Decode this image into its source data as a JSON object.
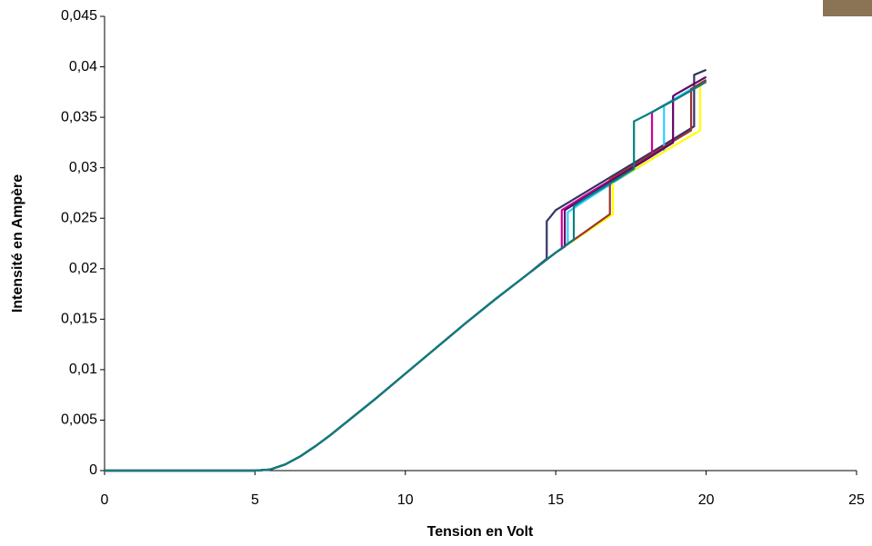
{
  "chart_data": {
    "type": "line",
    "xlabel": "Tension en Volt",
    "ylabel": "Intensité en Ampère",
    "xlim": [
      0,
      25
    ],
    "xticks": [
      0,
      5,
      10,
      15,
      20,
      25
    ],
    "ylim": [
      0,
      0.045
    ],
    "yticks": [
      0,
      {
        "value": 0.005,
        "label": "0,005"
      },
      {
        "value": 0.01,
        "label": "0,01"
      },
      {
        "value": 0.015,
        "label": "0,015"
      },
      {
        "value": 0.02,
        "label": "0,02"
      },
      {
        "value": 0.025,
        "label": "0,025"
      },
      {
        "value": 0.03,
        "label": "0,03"
      },
      {
        "value": 0.035,
        "label": "0,035"
      },
      {
        "value": 0.04,
        "label": "0,04"
      },
      {
        "value": 0.045,
        "label": "0,045"
      }
    ],
    "grid": false,
    "series": [
      {
        "color": "#333366",
        "x": [
          0,
          5,
          5.5,
          6,
          6.5,
          7,
          7.5,
          8,
          9,
          10,
          11,
          12,
          13,
          14,
          14.7,
          14.7,
          15,
          16,
          17,
          18,
          19,
          19.6,
          19.6,
          20
        ],
        "values": [
          0,
          0,
          0.0001,
          0.0006,
          0.0014,
          0.0024,
          0.0035,
          0.0047,
          0.0071,
          0.0096,
          0.0121,
          0.0146,
          0.017,
          0.0193,
          0.021,
          0.0247,
          0.0258,
          0.0276,
          0.0294,
          0.0312,
          0.033,
          0.0341,
          0.0392,
          0.0397
        ]
      },
      {
        "color": "#cc0099",
        "x": [
          0,
          5,
          5.5,
          6,
          6.5,
          7,
          7.5,
          8,
          9,
          10,
          11,
          12,
          13,
          14,
          15,
          15.2,
          15.2,
          16,
          17,
          18,
          18.2,
          18.2,
          19,
          20
        ],
        "values": [
          0,
          0,
          0.0001,
          0.0006,
          0.0014,
          0.0024,
          0.0035,
          0.0047,
          0.0071,
          0.0096,
          0.0121,
          0.0146,
          0.017,
          0.0193,
          0.0216,
          0.022,
          0.0258,
          0.0273,
          0.0291,
          0.0309,
          0.0313,
          0.0355,
          0.0369,
          0.0386
        ]
      },
      {
        "color": "#33ccff",
        "x": [
          0,
          5,
          5.5,
          6,
          6.5,
          7,
          7.5,
          8,
          9,
          10,
          11,
          12,
          13,
          14,
          15,
          15.4,
          15.4,
          16,
          17,
          18,
          18.6,
          18.6,
          19,
          20
        ],
        "values": [
          0,
          0,
          0.0001,
          0.0006,
          0.0014,
          0.0024,
          0.0035,
          0.0047,
          0.0071,
          0.0096,
          0.0121,
          0.0146,
          0.017,
          0.0193,
          0.0216,
          0.0224,
          0.0256,
          0.0268,
          0.0287,
          0.0305,
          0.0316,
          0.0362,
          0.0369,
          0.0387
        ]
      },
      {
        "color": "#ffff00",
        "x": [
          0,
          5,
          5.5,
          6,
          6.5,
          7,
          7.5,
          8,
          9,
          10,
          11,
          12,
          13,
          14,
          15,
          16,
          16.9,
          16.9,
          17,
          18,
          19,
          19.8,
          19.8,
          20
        ],
        "values": [
          0,
          0,
          0.0001,
          0.0006,
          0.0014,
          0.0024,
          0.0035,
          0.0047,
          0.0071,
          0.0096,
          0.0121,
          0.0146,
          0.017,
          0.0193,
          0.0216,
          0.0236,
          0.0254,
          0.0286,
          0.0288,
          0.0305,
          0.0323,
          0.0337,
          0.0383,
          0.0385
        ]
      },
      {
        "color": "#993333",
        "x": [
          0,
          5,
          5.5,
          6,
          6.5,
          7,
          7.5,
          8,
          9,
          10,
          11,
          12,
          13,
          14,
          15,
          16,
          16.8,
          16.8,
          17,
          18,
          19,
          19.5,
          19.5,
          20
        ],
        "values": [
          0,
          0,
          0.0001,
          0.0006,
          0.0014,
          0.0024,
          0.0035,
          0.0047,
          0.0071,
          0.0096,
          0.0121,
          0.0146,
          0.017,
          0.0193,
          0.0216,
          0.0237,
          0.0254,
          0.0289,
          0.0292,
          0.031,
          0.0328,
          0.0337,
          0.0378,
          0.0387
        ]
      },
      {
        "color": "#660066",
        "x": [
          0,
          5,
          5.5,
          6,
          6.5,
          7,
          7.5,
          8,
          9,
          10,
          11,
          12,
          13,
          14,
          15,
          15.3,
          15.3,
          16,
          17,
          18,
          18.9,
          18.9,
          19,
          20
        ],
        "values": [
          0,
          0,
          0.0001,
          0.0006,
          0.0014,
          0.0024,
          0.0035,
          0.0047,
          0.0071,
          0.0096,
          0.0121,
          0.0146,
          0.017,
          0.0193,
          0.0216,
          0.0222,
          0.0258,
          0.0271,
          0.029,
          0.0308,
          0.0325,
          0.0371,
          0.0373,
          0.039
        ]
      },
      {
        "color": "#008080",
        "x": [
          0,
          5,
          5.5,
          6,
          6.5,
          7,
          7.5,
          8,
          9,
          10,
          11,
          12,
          13,
          14,
          15,
          15.6,
          15.6,
          16,
          17,
          17.6,
          17.6,
          18,
          19,
          20
        ],
        "values": [
          0,
          0,
          0.0001,
          0.0006,
          0.0014,
          0.0024,
          0.0035,
          0.0047,
          0.0071,
          0.0096,
          0.0121,
          0.0146,
          0.017,
          0.0193,
          0.0216,
          0.0229,
          0.0262,
          0.027,
          0.0288,
          0.0299,
          0.0346,
          0.0352,
          0.0368,
          0.0385
        ]
      }
    ]
  }
}
